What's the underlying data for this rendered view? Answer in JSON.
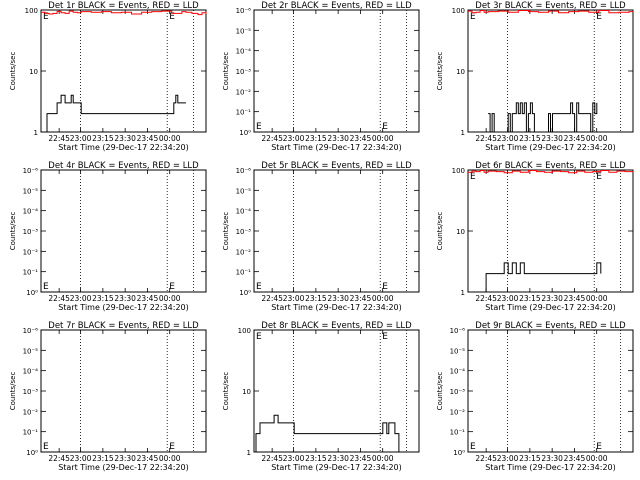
{
  "colors": {
    "events": "#000000",
    "lld": "#ff0000",
    "axis": "#000000",
    "background": "#ffffff"
  },
  "common": {
    "xlabel": "Start Time (29-Dec-17 22:34:20)",
    "ylabel": "Counts/sec",
    "xticks": [
      "22:45",
      "23:00",
      "23:15",
      "23:30",
      "23:45",
      "00:00"
    ]
  },
  "chart_data": [
    {
      "type": "line",
      "title": "Det 1r BLACK = Events, RED = LLD",
      "yscale": "log",
      "yticks": [
        "1",
        "10",
        "100"
      ],
      "ylim": [
        1,
        100
      ],
      "e_marker": "E",
      "events": {
        "x_min": [
          0,
          2,
          3,
          5,
          6,
          7,
          8,
          9,
          10,
          12,
          14,
          15,
          16,
          18,
          20,
          22,
          24,
          26,
          28,
          30,
          32,
          34,
          36,
          38,
          40,
          42,
          44,
          46,
          48,
          50,
          52,
          54,
          56,
          58,
          60,
          62,
          64,
          66,
          67,
          68,
          70,
          72
        ],
        "y": [
          1,
          1,
          2,
          2,
          2,
          2,
          3,
          3,
          4,
          3,
          3,
          4,
          3,
          3,
          2,
          2,
          2,
          2,
          2,
          2,
          2,
          2,
          2,
          2,
          2,
          2,
          2,
          2,
          2,
          2,
          2,
          2,
          2,
          2,
          2,
          2,
          2,
          3,
          4,
          3,
          3,
          3
        ]
      },
      "lld": {
        "x_min": [
          0,
          2,
          4,
          6,
          8,
          10,
          12,
          14,
          16,
          18,
          20,
          25,
          30,
          35,
          40,
          45,
          50,
          55,
          60,
          65,
          70,
          72,
          75,
          78,
          80,
          82
        ],
        "y": [
          92,
          88,
          86,
          88,
          95,
          90,
          88,
          96,
          92,
          90,
          94,
          92,
          94,
          90,
          92,
          86,
          92,
          94,
          96,
          88,
          94,
          92,
          88,
          84,
          90,
          86
        ]
      }
    },
    {
      "type": "line",
      "title": "Det 2r BLACK = Events, RED = LLD",
      "yscale": "log",
      "yticks": [
        "10⁰",
        "10⁻¹",
        "10⁻²",
        "10⁻³",
        "10⁻⁴",
        "10⁻⁵",
        "10⁻⁶"
      ],
      "e_marker": "E",
      "events": {
        "x_min": [],
        "y": []
      },
      "lld": {
        "x_min": [],
        "y": []
      }
    },
    {
      "type": "line",
      "title": "Det 3r BLACK = Events, RED = LLD",
      "yscale": "log",
      "yticks": [
        "1",
        "10",
        "100"
      ],
      "ylim": [
        1,
        100
      ],
      "e_marker": "E",
      "events": {
        "x_min": [
          10,
          11,
          12,
          13,
          20,
          21,
          22,
          24,
          25,
          26,
          27,
          28,
          29,
          30,
          31,
          32,
          33,
          40,
          41,
          42,
          50,
          51,
          52,
          53,
          54,
          55,
          60,
          61,
          62,
          63,
          64
        ],
        "y": [
          2,
          1,
          2,
          1,
          2,
          1,
          2,
          3,
          2,
          3,
          2,
          3,
          1,
          2,
          3,
          2,
          1,
          2,
          1,
          2,
          2,
          3,
          2,
          1,
          3,
          2,
          2,
          1,
          3,
          2,
          3
        ]
      },
      "lld": {
        "x_min": [
          0,
          2,
          4,
          6,
          8,
          10,
          15,
          20,
          25,
          30,
          35,
          40,
          45,
          50,
          55,
          60,
          65,
          70,
          75,
          80,
          82
        ],
        "y": [
          96,
          90,
          92,
          98,
          92,
          94,
          96,
          92,
          98,
          94,
          92,
          96,
          90,
          94,
          96,
          92,
          98,
          90,
          92,
          94,
          96
        ]
      }
    },
    {
      "type": "line",
      "title": "Det 4r BLACK = Events, RED = LLD",
      "yscale": "log",
      "yticks": [
        "10⁰",
        "10⁻¹",
        "10⁻²",
        "10⁻³",
        "10⁻⁴",
        "10⁻⁵",
        "10⁻⁶"
      ],
      "e_marker": "E",
      "events": {
        "x_min": [],
        "y": []
      },
      "lld": {
        "x_min": [],
        "y": []
      }
    },
    {
      "type": "line",
      "title": "Det 5r BLACK = Events, RED = LLD",
      "yscale": "log",
      "yticks": [
        "10⁰",
        "10⁻¹",
        "10⁻²",
        "10⁻³",
        "10⁻⁴",
        "10⁻⁵",
        "10⁻⁶"
      ],
      "e_marker": "E",
      "events": {
        "x_min": [],
        "y": []
      },
      "lld": {
        "x_min": [],
        "y": []
      }
    },
    {
      "type": "line",
      "title": "Det 6r BLACK = Events, RED = LLD",
      "yscale": "log",
      "yticks": [
        "1",
        "10",
        "100"
      ],
      "ylim": [
        1,
        100
      ],
      "e_marker": "E",
      "events": {
        "x_min": [
          8,
          9,
          10,
          12,
          14,
          16,
          18,
          20,
          22,
          24,
          26,
          28,
          30,
          32,
          34,
          36,
          38,
          40,
          42,
          44,
          46,
          48,
          50,
          52,
          54,
          56,
          58,
          60,
          62,
          64,
          66
        ],
        "y": [
          1,
          2,
          2,
          2,
          2,
          2,
          3,
          2,
          3,
          2,
          3,
          2,
          2,
          2,
          2,
          2,
          2,
          2,
          2,
          2,
          2,
          2,
          2,
          2,
          2,
          2,
          2,
          2,
          2,
          3,
          2
        ]
      },
      "lld": {
        "x_min": [
          0,
          2,
          4,
          6,
          8,
          10,
          14,
          18,
          22,
          26,
          30,
          34,
          38,
          42,
          46,
          50,
          54,
          58,
          62,
          66,
          70,
          74,
          78,
          82
        ],
        "y": [
          92,
          96,
          94,
          98,
          92,
          96,
          94,
          90,
          96,
          92,
          98,
          94,
          92,
          96,
          94,
          90,
          96,
          92,
          94,
          98,
          92,
          96,
          94,
          96
        ]
      }
    },
    {
      "type": "line",
      "title": "Det 7r BLACK = Events, RED = LLD",
      "yscale": "log",
      "yticks": [
        "10⁰",
        "10⁻¹",
        "10⁻²",
        "10⁻³",
        "10⁻⁴",
        "10⁻⁵",
        "10⁻⁶"
      ],
      "e_marker": "E",
      "events": {
        "x_min": [],
        "y": []
      },
      "lld": {
        "x_min": [],
        "y": []
      }
    },
    {
      "type": "line",
      "title": "Det 8r BLACK = Events, RED = LLD",
      "yscale": "log",
      "yticks": [
        "1",
        "10",
        "100"
      ],
      "ylim": [
        1,
        100
      ],
      "e_marker": "E",
      "events": {
        "x_min": [
          0,
          1,
          2,
          3,
          4,
          6,
          8,
          10,
          12,
          14,
          16,
          18,
          20,
          22,
          24,
          26,
          28,
          30,
          32,
          34,
          36,
          38,
          40,
          42,
          44,
          46,
          48,
          50,
          52,
          54,
          56,
          58,
          60,
          62,
          64,
          65,
          66,
          67,
          68,
          70,
          72
        ],
        "y": [
          1,
          2,
          2,
          3,
          3,
          3,
          3,
          4,
          3,
          3,
          3,
          3,
          2,
          2,
          2,
          2,
          2,
          2,
          2,
          2,
          2,
          2,
          2,
          2,
          2,
          2,
          2,
          2,
          2,
          2,
          2,
          2,
          2,
          2,
          3,
          3,
          2,
          3,
          3,
          2,
          1
        ]
      },
      "lld": {
        "x_min": [],
        "y": []
      }
    },
    {
      "type": "line",
      "title": "Det 9r BLACK = Events, RED = LLD",
      "yscale": "log",
      "yticks": [
        "10⁰",
        "10⁻¹",
        "10⁻²",
        "10⁻³",
        "10⁻⁴",
        "10⁻⁵",
        "10⁻⁶"
      ],
      "e_marker": "E",
      "events": {
        "x_min": [],
        "y": []
      },
      "lld": {
        "x_min": [],
        "y": []
      }
    }
  ]
}
